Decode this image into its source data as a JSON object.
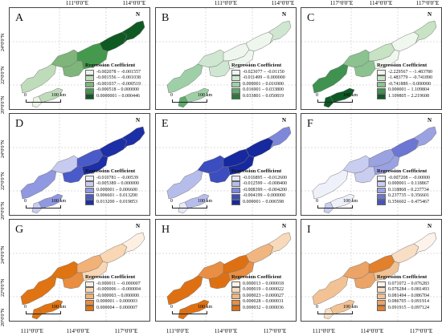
{
  "axes": {
    "lon_labels": [
      "111°0'0\"E",
      "114°0'0\"E",
      "117°0'0\"E"
    ],
    "lat_labels": [
      "24°0'0\"N",
      "22°0'0\"N",
      "20°0'0\"N"
    ]
  },
  "legend_title": "Regression Coefficient",
  "north_symbol": "N",
  "scale": {
    "zero": "0",
    "distance": "100 km"
  },
  "panels": [
    {
      "label": "A",
      "colors": [
        "#ebf3e6",
        "#bfdcba",
        "#7fb57a",
        "#449a4c",
        "#0f5a23"
      ],
      "classes": [
        "-0.002078 – -0.001557",
        "-0.001556 – -0.001038",
        "-0.001037 – -0.000519",
        "-0.000518 – 0.000000",
        "0.0000001 – 0.000446"
      ]
    },
    {
      "label": "B",
      "colors": [
        "#eef6ee",
        "#cfe7d1",
        "#9fcfa7",
        "#5eaa6a",
        "#2a7a3a"
      ],
      "classes": [
        "-0.023077 – -0.01150",
        "-0.011499 – 0.000000",
        "0.000001 – 0.016900",
        "0.016901 – 0.033800",
        "0.033801 – 0.050819"
      ]
    },
    {
      "label": "C",
      "colors": [
        "#f0f7ee",
        "#c7e3c4",
        "#8bc290",
        "#3f9250",
        "#0e5a25"
      ],
      "classes": [
        "-2.229567 – -1.483780",
        "-1.483779 – -0.741890",
        "-0.741889 – 0.000000",
        "0.000001 – 1.109804",
        "1.109805 – 2.219608"
      ]
    },
    {
      "label": "D",
      "colors": [
        "#eceef8",
        "#c7cbef",
        "#8f98e0",
        "#4a5ac8",
        "#1d2fa6"
      ],
      "classes": [
        "-0.010781 – -0.00539",
        "-0.005389 – 0.000000",
        "0.000001 – 0.006600",
        "0.006601 – 0.013200",
        "0.013200 – 0.019853"
      ]
    },
    {
      "label": "E",
      "colors": [
        "#e6e9f8",
        "#b6bdeb",
        "#7d88d9",
        "#3c4dc0",
        "#17299e"
      ],
      "classes": [
        "-0.016895 – -0.012600",
        "-0.012599 – -0.008400",
        "-0.008399 – -0.004200",
        "-0.004199 – 0.000000",
        "0.000001 – 0.006598"
      ]
    },
    {
      "label": "F",
      "colors": [
        "#eef0fa",
        "#c9cdf0",
        "#9aa2e2",
        "#6b77d2",
        "#4453c2"
      ],
      "classes": [
        "-0.007208 – -0.00000",
        "0.000001 – 0.118867",
        "0.118868 – 0.237734",
        "0.237735 – 0.356601",
        "0.356602 – 0.475467"
      ]
    },
    {
      "label": "G",
      "colors": [
        "#fdf0e3",
        "#f9d7b4",
        "#f2b277",
        "#ea8d3e",
        "#e07412"
      ],
      "classes": [
        "-0.000011 – -0.000007",
        "-0.000006 – -0.000004",
        "-0.000003 – 0.000000",
        "0.000001 – 0.000003",
        "0.000004 – 0.000007"
      ]
    },
    {
      "label": "H",
      "colors": [
        "#fdf1e6",
        "#f8d9ba",
        "#f1b67f",
        "#e98e42",
        "#df7012"
      ],
      "classes": [
        "0.000013 – 0.000018",
        "0.000019 – 0.000022",
        "0.000023 – 0.000027",
        "0.000028 – 0.000031",
        "0.000032 – 0.000036"
      ]
    },
    {
      "label": "I",
      "colors": [
        "#fdf3ea",
        "#f8dec5",
        "#f2c294",
        "#eba466",
        "#e2802c"
      ],
      "classes": [
        "0.071072 – 0.076283",
        "0.076284 – 0.081493",
        "0.081494 – 0.086704",
        "0.086705 – 0.091914",
        "0.091915 – 0.097124"
      ]
    }
  ]
}
